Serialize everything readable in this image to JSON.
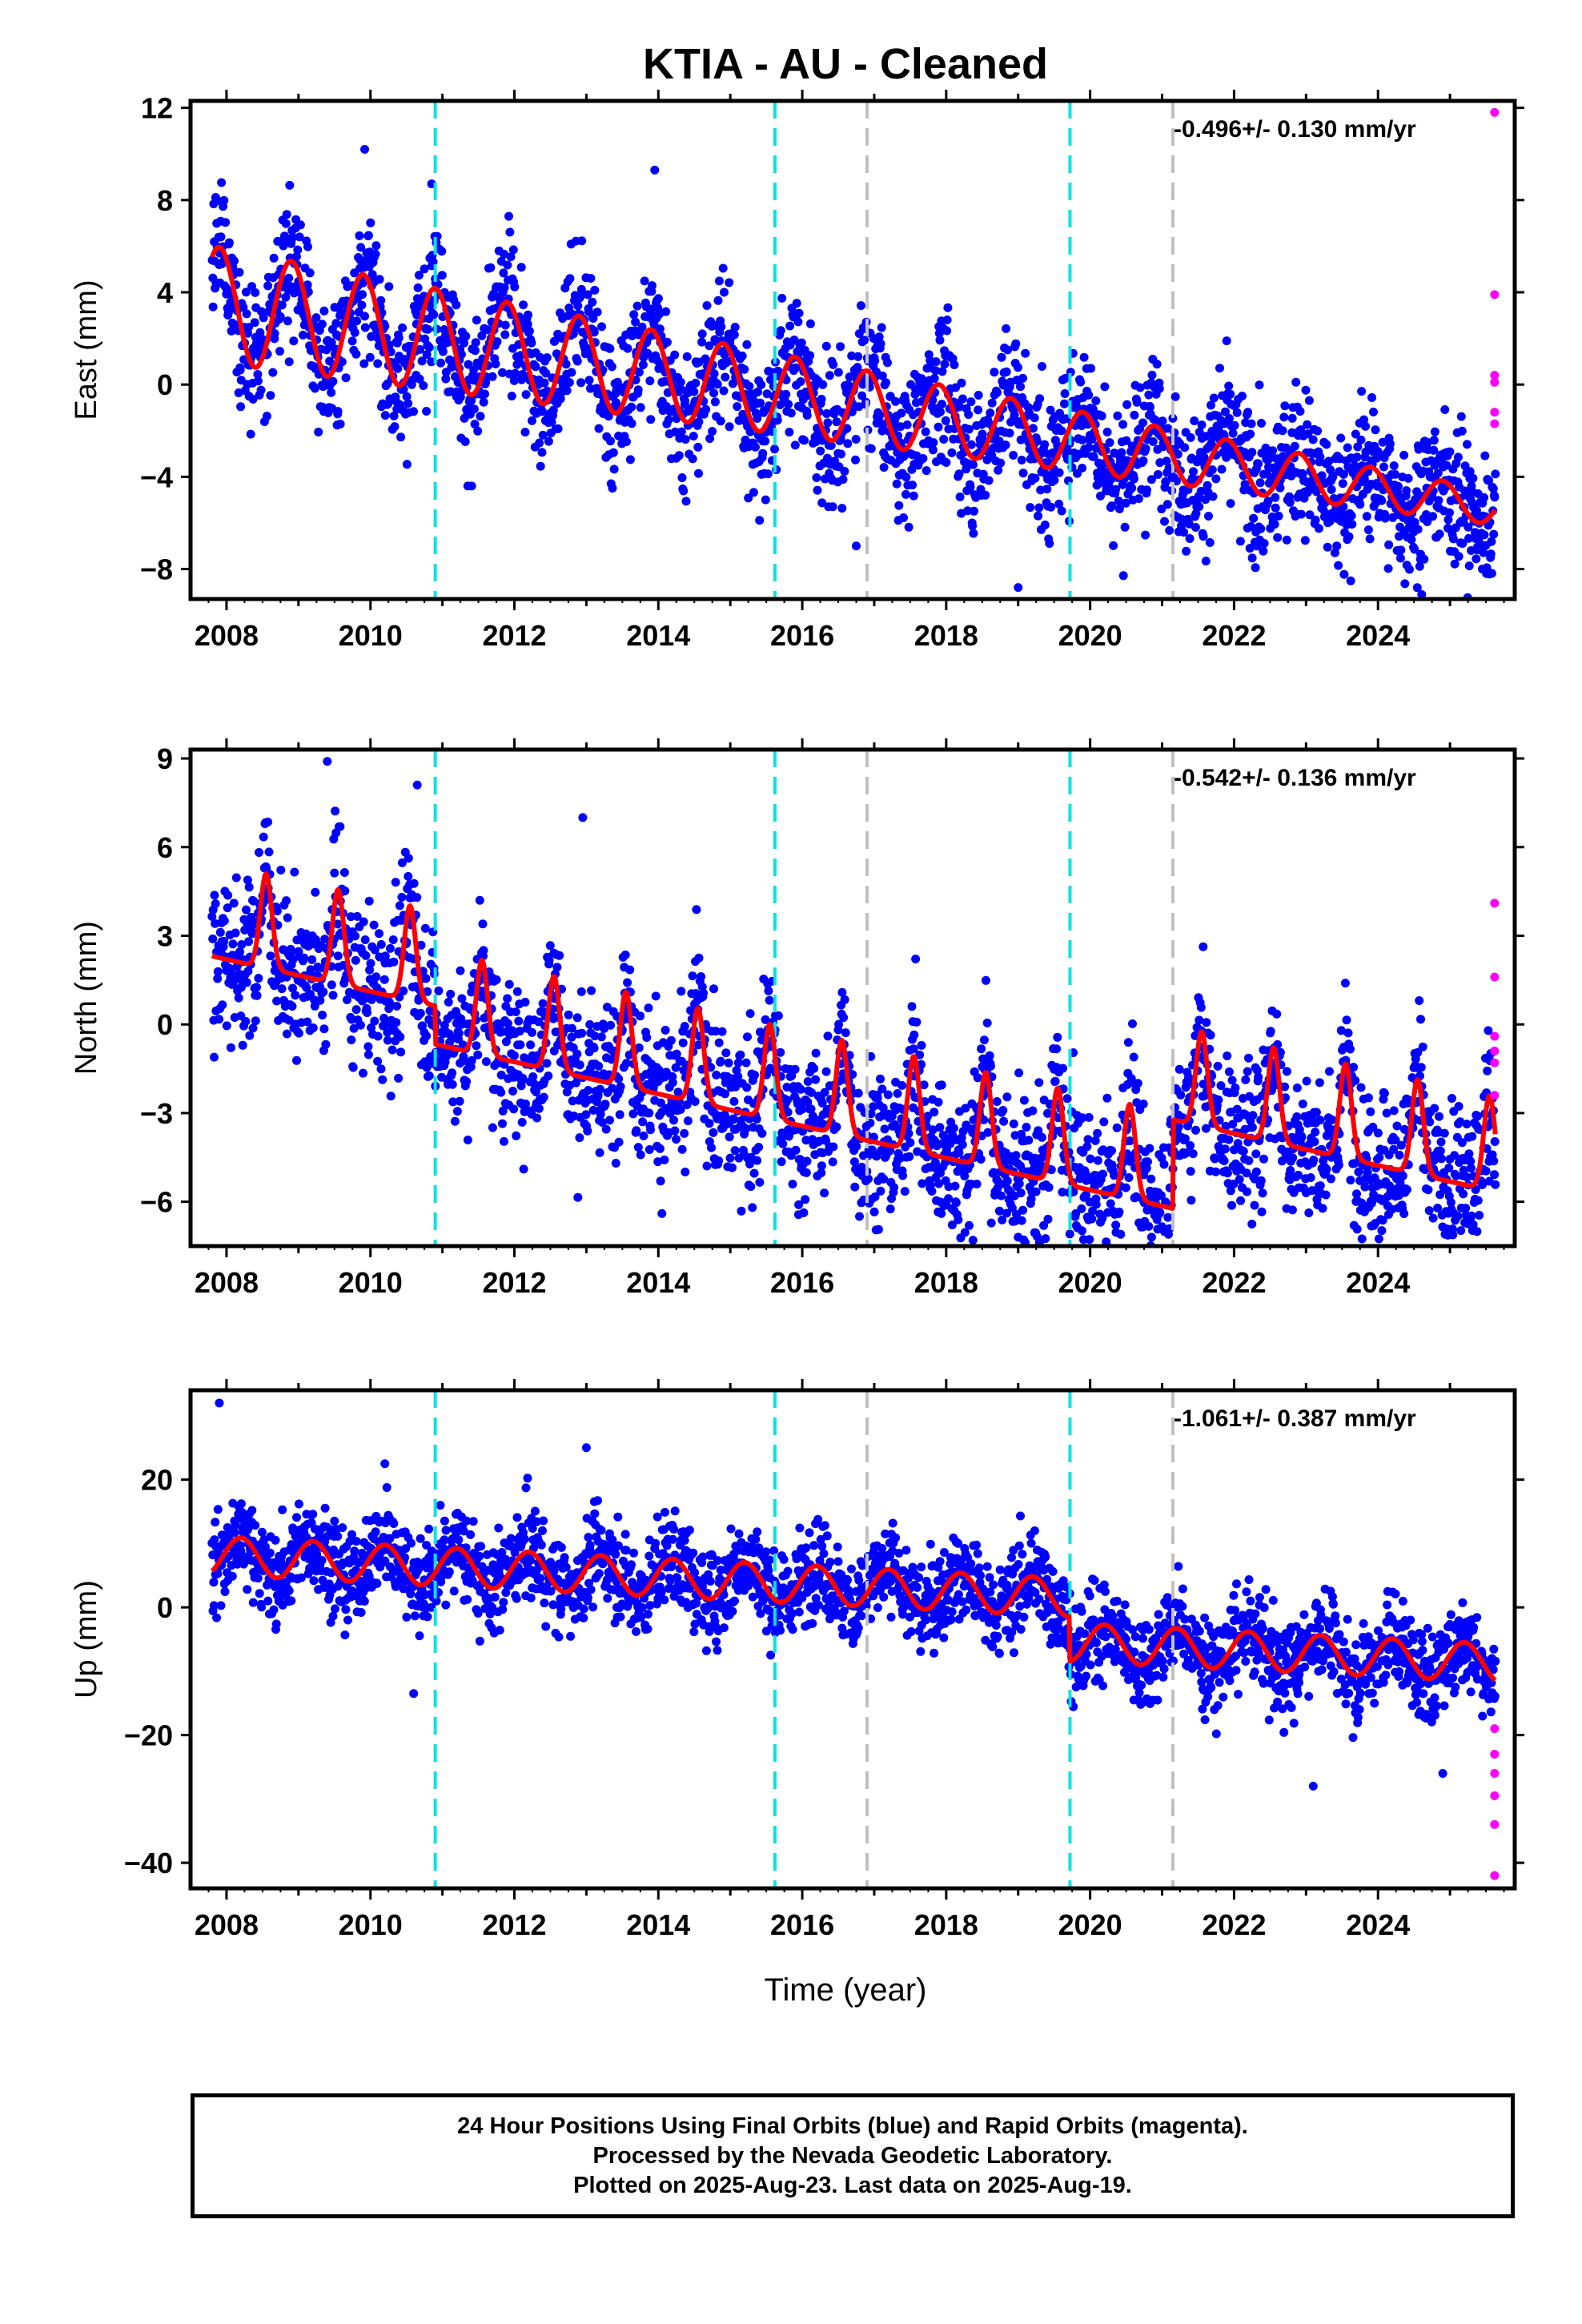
{
  "title": "KTIA  - AU - Cleaned",
  "xlabel": "Time (year)",
  "footer": {
    "line1": "24 Hour Positions Using Final Orbits (blue) and Rapid Orbits (magenta).",
    "line2": "Processed by the Nevada Geodetic Laboratory.",
    "line3": "Plotted on 2025-Aug-23. Last data on 2025-Aug-19."
  },
  "colors": {
    "final_orbits": "#0000ff",
    "rapid_orbits": "#ff00ff",
    "model": "#ff0000",
    "equipment_change": "#00e5e5",
    "other_event": "#c0c0c0"
  },
  "chart_data": [
    {
      "type": "scatter",
      "component": "East",
      "ylabel": "East (mm)",
      "rate_label": "-0.496+/- 0.130 mm/yr",
      "xlim": [
        2007.5,
        2025.9
      ],
      "ylim": [
        -9.3,
        12.3
      ],
      "yticks": [
        12,
        8,
        4,
        0,
        -4,
        -8
      ],
      "xticks": [
        2008,
        2010,
        2012,
        2014,
        2016,
        2018,
        2020,
        2022,
        2024
      ],
      "grid": false,
      "data_start": 2007.8,
      "data_end": 2025.63,
      "model": {
        "offset_2008": 3.4,
        "rate": -0.496,
        "annual_amplitude": 2.5,
        "peak_phase": 0.9,
        "amplitude_decay_per_year": 0.04
      },
      "scatter_sigma": 1.5,
      "rapid_points": [
        {
          "x": 2025.62,
          "y": 11.8
        },
        {
          "x": 2025.62,
          "y": 3.9
        },
        {
          "x": 2025.62,
          "y": 0.4
        },
        {
          "x": 2025.62,
          "y": 0.1
        },
        {
          "x": 2025.62,
          "y": -1.2
        },
        {
          "x": 2025.62,
          "y": -1.7
        }
      ],
      "outliers": [
        {
          "x": 2009.92,
          "y": 10.2
        },
        {
          "x": 2013.95,
          "y": 9.3
        },
        {
          "x": 2010.85,
          "y": 8.7
        },
        {
          "x": 2019.0,
          "y": -8.8
        },
        {
          "x": 2025.45,
          "y": -8.0
        },
        {
          "x": 2016.75,
          "y": -7.0
        }
      ]
    },
    {
      "type": "scatter",
      "component": "North",
      "ylabel": "North (mm)",
      "rate_label": "-0.542+/- 0.136 mm/yr",
      "xlim": [
        2007.5,
        2025.9
      ],
      "ylim": [
        -7.5,
        9.3
      ],
      "yticks": [
        9,
        6,
        3,
        0,
        -3,
        -6
      ],
      "xticks": [
        2008,
        2010,
        2012,
        2014,
        2016,
        2018,
        2020,
        2022,
        2024
      ],
      "grid": false,
      "data_start": 2007.8,
      "data_end": 2025.63,
      "model": {
        "offset_2008": 3.0,
        "rate": -0.542,
        "annual_amplitude": 3.2,
        "peak_phase": 0.55,
        "spike_width": 0.08,
        "jumps": [
          {
            "x": 2010.9,
            "dy": -1.3
          },
          {
            "x": 2021.15,
            "dy": 3.0
          }
        ]
      },
      "scatter_sigma": 1.3,
      "rapid_points": [
        {
          "x": 2025.62,
          "y": 4.1
        },
        {
          "x": 2025.62,
          "y": 1.6
        },
        {
          "x": 2025.62,
          "y": -0.4
        },
        {
          "x": 2025.62,
          "y": -0.9
        },
        {
          "x": 2025.62,
          "y": -1.3
        },
        {
          "x": 2025.62,
          "y": -2.4
        }
      ],
      "outliers": [
        {
          "x": 2009.4,
          "y": 8.9
        },
        {
          "x": 2012.95,
          "y": 7.0
        },
        {
          "x": 2010.65,
          "y": 8.1
        },
        {
          "x": 2019.0,
          "y": -7.2
        },
        {
          "x": 2014.05,
          "y": -6.4
        },
        {
          "x": 2015.95,
          "y": -6.1
        }
      ]
    },
    {
      "type": "scatter",
      "component": "Up",
      "ylabel": "Up (mm)",
      "rate_label": "-1.061+/- 0.387 mm/yr",
      "xlim": [
        2007.5,
        2025.9
      ],
      "ylim": [
        -44,
        34
      ],
      "yticks": [
        20,
        0,
        -20,
        -40
      ],
      "xticks": [
        2008,
        2010,
        2012,
        2014,
        2016,
        2018,
        2020,
        2022,
        2024
      ],
      "grid": false,
      "data_start": 2007.8,
      "data_end": 2025.63,
      "model": {
        "offset_2008": 8.0,
        "rate": -0.55,
        "annual_amplitude": 3.0,
        "peak_phase": 0.2,
        "jumps": [
          {
            "x": 2019.72,
            "dy": -7.0
          }
        ]
      },
      "scatter_sigma": 3.6,
      "rapid_points": [
        {
          "x": 2025.62,
          "y": -19.0
        },
        {
          "x": 2025.62,
          "y": -23.0
        },
        {
          "x": 2025.62,
          "y": -26.0
        },
        {
          "x": 2025.62,
          "y": -29.5
        },
        {
          "x": 2025.62,
          "y": -34.0
        },
        {
          "x": 2025.62,
          "y": -42.0
        }
      ],
      "outliers": [
        {
          "x": 2007.9,
          "y": 32.0
        },
        {
          "x": 2013.0,
          "y": 25.0
        },
        {
          "x": 2010.2,
          "y": 22.5
        },
        {
          "x": 2010.6,
          "y": -13.5
        },
        {
          "x": 2023.1,
          "y": -28.0
        },
        {
          "x": 2024.9,
          "y": -26.0
        }
      ]
    }
  ],
  "event_lines": [
    {
      "x": 2010.9,
      "kind": "equipment_change"
    },
    {
      "x": 2015.62,
      "kind": "equipment_change"
    },
    {
      "x": 2016.9,
      "kind": "other_event"
    },
    {
      "x": 2019.72,
      "kind": "equipment_change"
    },
    {
      "x": 2021.15,
      "kind": "other_event"
    }
  ]
}
